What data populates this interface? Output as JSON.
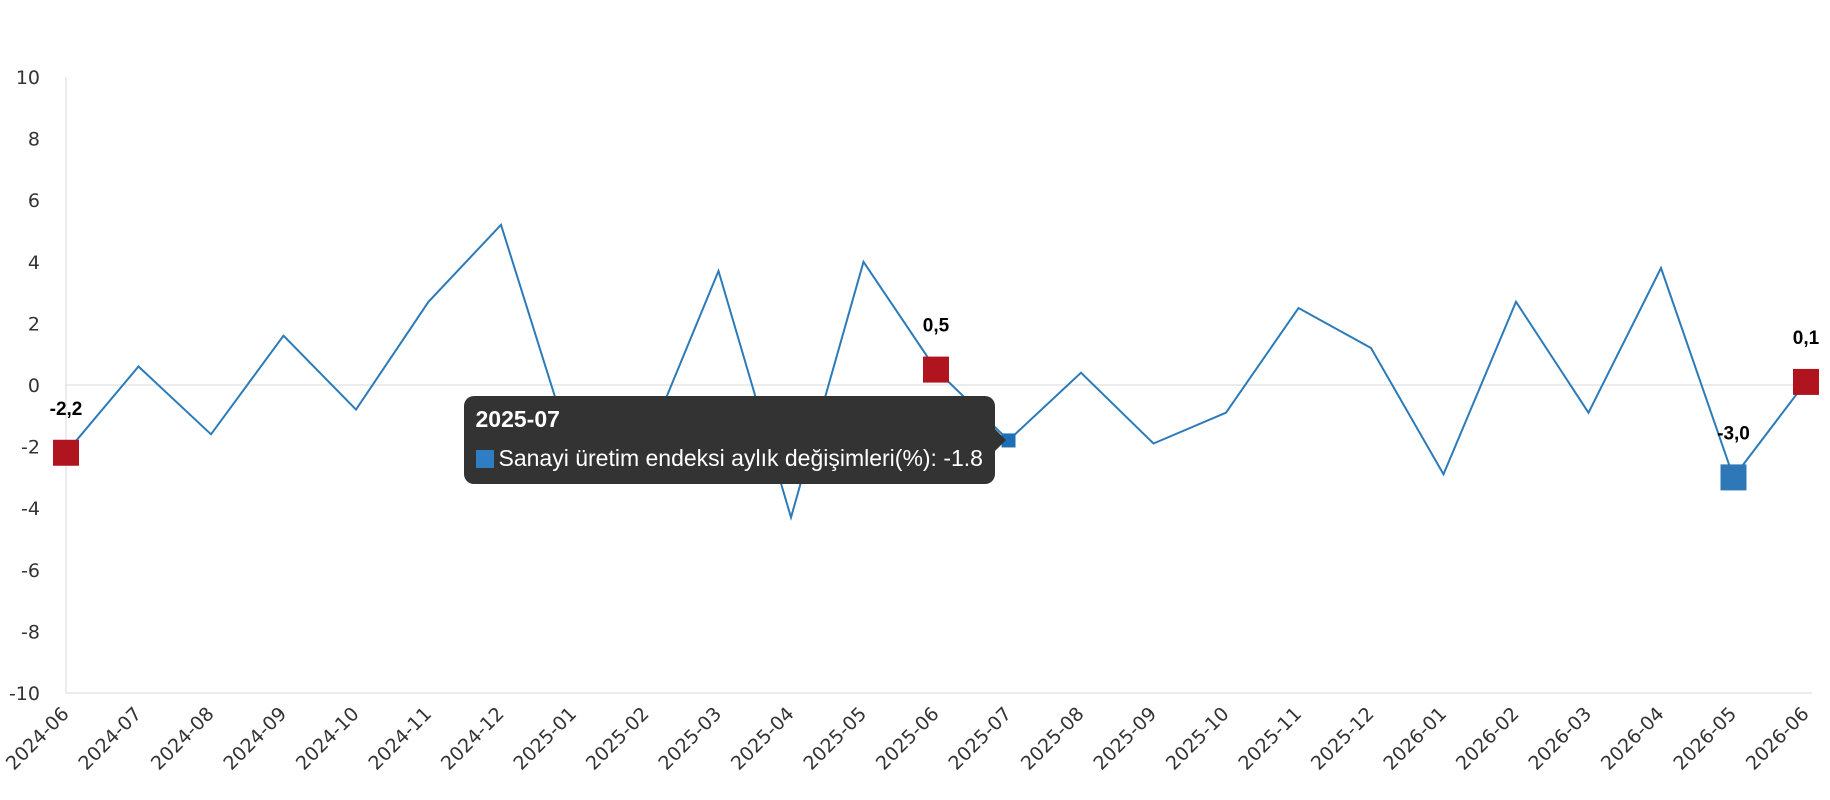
{
  "chart_data": {
    "type": "line",
    "x": [
      "2024-06",
      "2024-07",
      "2024-08",
      "2024-09",
      "2024-10",
      "2024-11",
      "2024-12",
      "2025-01",
      "2025-02",
      "2025-03",
      "2025-04",
      "2025-05",
      "2025-06",
      "2025-07",
      "2025-08",
      "2025-09",
      "2025-10",
      "2025-11",
      "2025-12",
      "2026-01",
      "2026-02",
      "2026-03",
      "2026-04",
      "2026-05",
      "2026-06"
    ],
    "series": [
      {
        "name": "Sanayi üretim endeksi aylık değişimleri(%)",
        "color": "#2b7bba",
        "values": [
          -2.2,
          0.6,
          -1.6,
          1.6,
          -0.8,
          2.7,
          5.2,
          -2.3,
          -2.0,
          3.7,
          -4.3,
          4.0,
          0.5,
          -1.8,
          0.4,
          -1.9,
          -0.9,
          2.5,
          1.2,
          -2.9,
          2.7,
          -0.9,
          3.8,
          -3.0,
          0.1
        ]
      }
    ],
    "ylim": [
      -10,
      10
    ],
    "yticks": [
      -10,
      -8,
      -6,
      -4,
      -2,
      0,
      2,
      4,
      6,
      8,
      10
    ],
    "grid": false,
    "zero_line": true,
    "highlighted_points": [
      {
        "x": "2024-06",
        "label": "-2,2",
        "color": "#b0141e"
      },
      {
        "x": "2025-06",
        "label": "0,5",
        "color": "#b0141e"
      },
      {
        "x": "2026-05",
        "label": "-3,0",
        "color": "#2e78b8"
      },
      {
        "x": "2026-06",
        "label": "0,1",
        "color": "#b0141e"
      }
    ],
    "hovered_point": {
      "x": "2025-07",
      "color": "#1f6fb6"
    }
  },
  "tooltip": {
    "title": "2025-07",
    "series_label": "Sanayi üretim endeksi aylık değişimleri(%): -1.8",
    "swatch_color": "#2f7ec4"
  }
}
